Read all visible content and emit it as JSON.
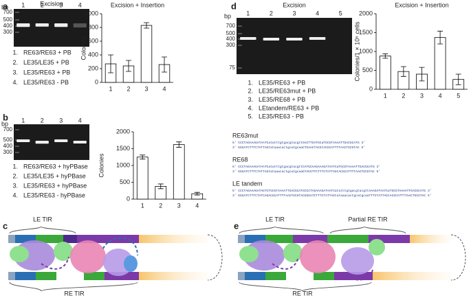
{
  "panel_letters": [
    "a",
    "b",
    "c",
    "d",
    "e"
  ],
  "chart_data": [
    {
      "type": "bar",
      "title": "Excision + Insertion",
      "y_label": "Colonies",
      "categories": [
        "1",
        "2",
        "3",
        "4"
      ],
      "values": [
        270,
        240,
        830,
        260
      ],
      "errors": [
        130,
        80,
        40,
        110
      ],
      "ylim": [
        0,
        1000
      ],
      "yticks": [
        0,
        200,
        400,
        600,
        800,
        1000
      ],
      "color": "#ffffff"
    },
    {
      "type": "bar",
      "y_label": "Colonies",
      "categories": [
        "1",
        "2",
        "3",
        "4"
      ],
      "values": [
        1250,
        380,
        1620,
        160
      ],
      "errors": [
        60,
        70,
        80,
        40
      ],
      "ylim": [
        0,
        2000
      ],
      "yticks": [
        0,
        500,
        1000,
        1500,
        2000
      ],
      "color": "#ffffff"
    },
    {
      "type": "bar",
      "title": "Excision + Insertion",
      "y_label": "Colonies/1 × 10⁶ cells",
      "categories": [
        "1",
        "2",
        "3",
        "4",
        "5"
      ],
      "values": [
        880,
        470,
        400,
        1370,
        260
      ],
      "errors": [
        60,
        130,
        180,
        170,
        140
      ],
      "ylim": [
        0,
        2000
      ],
      "yticks": [
        0,
        500,
        1000,
        1500,
        2000
      ],
      "color": "#ffffff"
    }
  ],
  "gels": [
    {
      "title": "Excision",
      "bp_label": "bp",
      "markers": [
        "700",
        "500",
        "400",
        "300"
      ],
      "lanes": [
        "1",
        "2",
        "3",
        "4"
      ]
    },
    {
      "bp_label": "bp",
      "markers": [
        "700",
        "500",
        "400",
        "300"
      ],
      "lanes": [
        "1",
        "2",
        "3",
        "4"
      ]
    },
    {
      "title": "Excision",
      "bp_label": "bp",
      "markers": [
        "700",
        "500",
        "400",
        "300",
        "75"
      ],
      "lanes": [
        "1",
        "2",
        "3",
        "4",
        "5"
      ]
    }
  ],
  "legends": [
    [
      {
        "num": "1.",
        "text": "RE63/RE63 + PB"
      },
      {
        "num": "2.",
        "text": "LE35/LE35 + PB"
      },
      {
        "num": "3.",
        "text": "LE35/RE63 + PB"
      },
      {
        "num": "4.",
        "text": "LE35/RE63 - PB"
      }
    ],
    [
      {
        "num": "1.",
        "text": "RE63/RE63 + hyPBase"
      },
      {
        "num": "2.",
        "text": "LE35/LE35 + hyPBase"
      },
      {
        "num": "3.",
        "text": "LE35/RE63 + hyPBase"
      },
      {
        "num": "4.",
        "text": "LE35/RE63 - hyPBase"
      }
    ],
    [
      {
        "num": "1.",
        "text": "LE35/RE63 + PB"
      },
      {
        "num": "2.",
        "text": "LE35/RE63mut + PB"
      },
      {
        "num": "3.",
        "text": "LE35/RE68 + PB"
      },
      {
        "num": "4.",
        "text": "LEtandem/RE63 + PB"
      },
      {
        "num": "5.",
        "text": "LE35/RE63 - PB"
      }
    ]
  ],
  "sequences": [
    {
      "name": "RE63mut",
      "top": "5' CCCTAGAAAGATAATCatatttgtgacgtacgttGACTTGATGCaTGCGTAAAATTGACGCATG 3'",
      "bottom": "3' GGGATCTTTCTATTAGtataaacactgcatgcaaCTGAACTACGtACGCATTTTAACTGCGTAC 5'"
    },
    {
      "name": "RE68",
      "top": "5' CCCTAGAAAGATAATCatatttgtgacgtacgttCATGCAAGAAAGATAATCaTGCGTAAAATTGACGCATG 3'",
      "bottom": "3' GGGATCTTTCTATTAGtataaacactgcatgcaaGTACGTTCTTTCTATTAGtACGCATTTTAACTGCGTAC 5'"
    },
    {
      "name": "LE tandem",
      "top": "5' CCCTAGAAAGATAGTCTGCGTAAAATTGACGCATGCCCTAGAAAGATAATCatatttgtgacgtacgttAAAGATAATCaTGCGTAAAATTGACGCATG 3'",
      "bottom": "3' GGGATCTTTCTATCAGACGCATTTTAACTGCGTACGGGATCTTTCTATTAGtataaacactgcatgcaaTTTCTATTAGtACGCATTTTAACTGCGTAC 5'"
    }
  ],
  "tir_labels": {
    "c_top": "LE TIR",
    "c_bottom": "RE TIR",
    "e_top": "LE TIR",
    "e_partial": "Partial RE TIR",
    "e_bottom": "RE TIR"
  }
}
